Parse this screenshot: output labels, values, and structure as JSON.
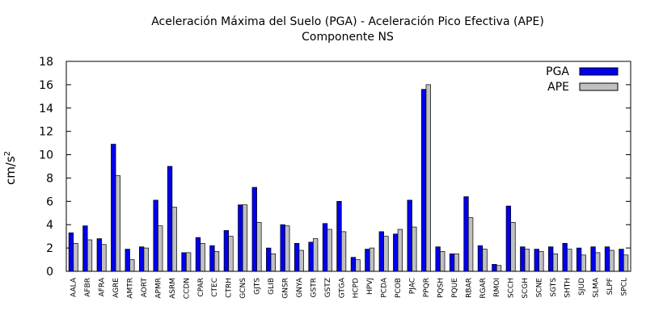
{
  "chart_data": {
    "type": "bar",
    "title": "Aceleración Máxima del Suelo (PGA) -   Aceleración Pico Efectiva (APE)",
    "subtitle": "Componente NS",
    "xlabel": "",
    "ylabel": "cm/s",
    "ylabel_exponent": "2",
    "ylim": [
      0,
      18
    ],
    "yticks": [
      "0",
      "2",
      "4",
      "6",
      "8",
      "10",
      "12",
      "14",
      "16",
      "18"
    ],
    "legend_position": "top-right",
    "grid": false,
    "categories": [
      "AALA",
      "AFBR",
      "AFRA",
      "AGRE",
      "AMTR",
      "AORT",
      "APMR",
      "ASRM",
      "CCDN",
      "CPAR",
      "CTEC",
      "CTRH",
      "GCNS",
      "GJTS",
      "GLIB",
      "GNSR",
      "GNYA",
      "GSTR",
      "GSTZ",
      "GTGA",
      "HCPD",
      "HPVJ",
      "PCDA",
      "PCOB",
      "PJAC",
      "PPQR",
      "PQSH",
      "PQUE",
      "RBAR",
      "RGAR",
      "RMOI",
      "SCCH",
      "SCGH",
      "SCNE",
      "SGTS",
      "SHTH",
      "SJUD",
      "SLMA",
      "SLPF",
      "SPCL"
    ],
    "series": [
      {
        "name": "PGA",
        "color": "#0000ee",
        "values": [
          3.3,
          3.9,
          2.8,
          10.9,
          1.9,
          2.1,
          6.1,
          9.0,
          1.6,
          2.9,
          2.2,
          3.5,
          5.7,
          7.2,
          2.0,
          4.0,
          2.4,
          2.5,
          4.1,
          6.0,
          1.2,
          1.9,
          3.4,
          3.2,
          6.1,
          15.6,
          2.1,
          1.5,
          6.4,
          2.2,
          0.6,
          5.6,
          2.1,
          1.9,
          2.1,
          2.4,
          2.0,
          2.1,
          2.1,
          1.9
        ]
      },
      {
        "name": "APE",
        "color": "#c0c0c0",
        "values": [
          2.4,
          2.7,
          2.3,
          8.2,
          1.0,
          2.0,
          3.9,
          5.5,
          1.6,
          2.4,
          1.7,
          3.0,
          5.7,
          4.2,
          1.5,
          3.9,
          1.8,
          2.8,
          3.6,
          3.4,
          1.0,
          2.0,
          3.0,
          3.6,
          3.8,
          16.0,
          1.7,
          1.5,
          4.6,
          1.9,
          0.5,
          4.2,
          1.9,
          1.7,
          1.5,
          1.9,
          1.4,
          1.6,
          1.8,
          1.4
        ]
      }
    ]
  }
}
